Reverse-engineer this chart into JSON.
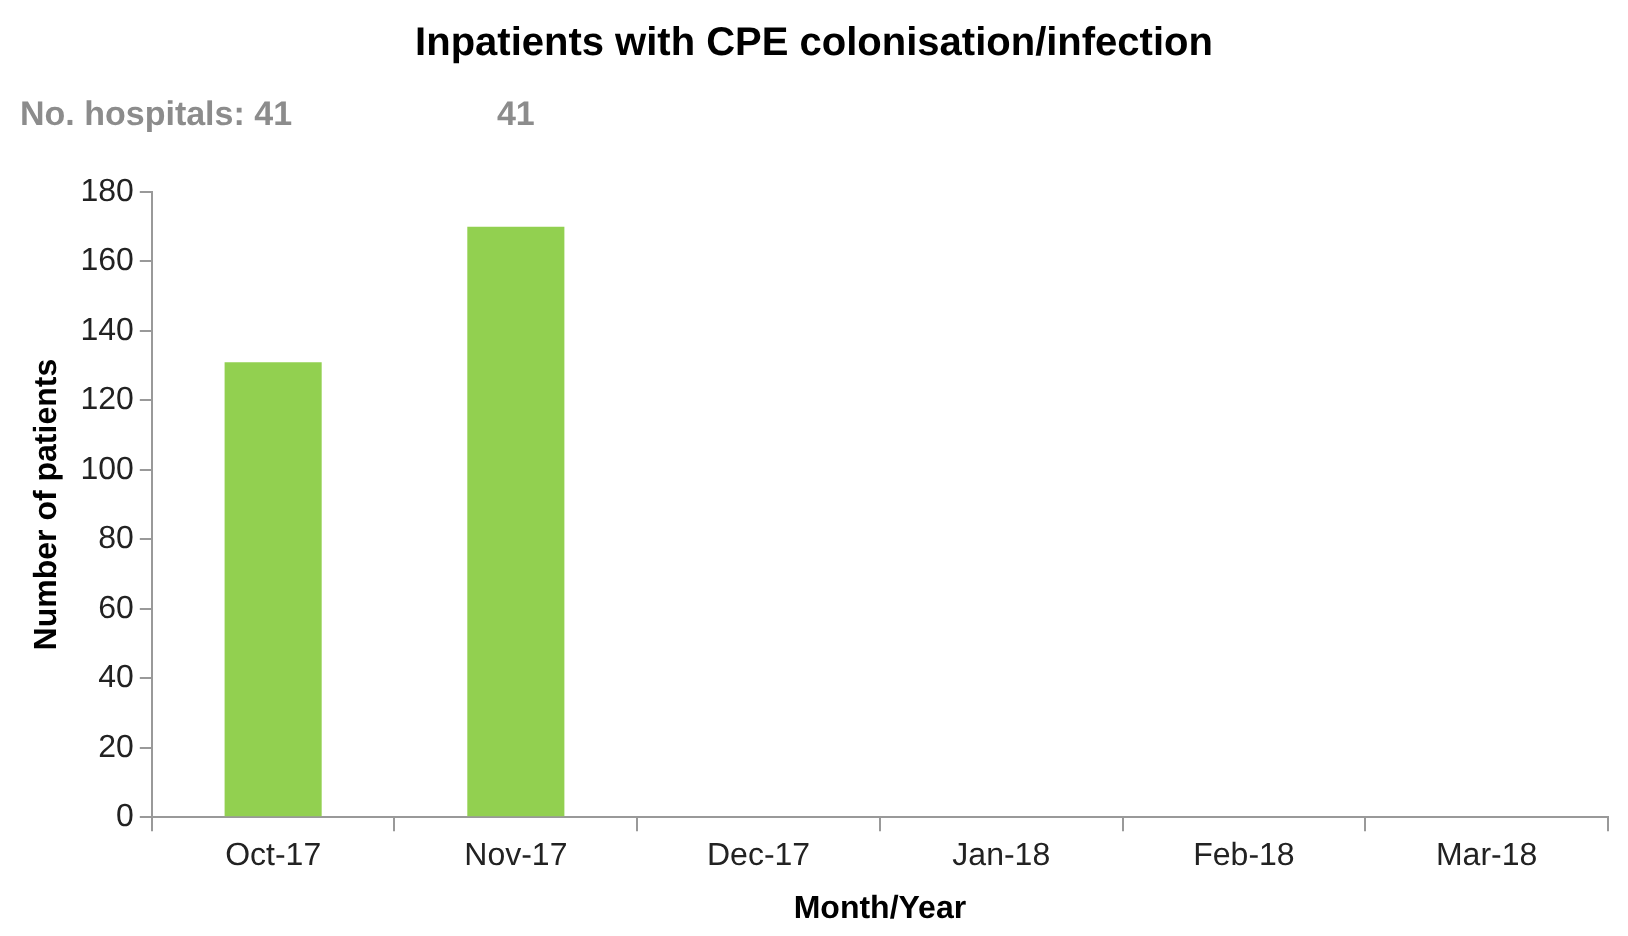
{
  "chart_data": {
    "type": "bar",
    "title": "Inpatients with CPE colonisation/infection",
    "xlabel": "Month/Year",
    "ylabel": "Number of patients",
    "categories": [
      "Oct-17",
      "Nov-17",
      "Dec-17",
      "Jan-18",
      "Feb-18",
      "Mar-18"
    ],
    "values": [
      131,
      170,
      null,
      null,
      null,
      null
    ],
    "color": "#92d050",
    "ylim": [
      0,
      180
    ],
    "yticks": [
      0,
      20,
      40,
      60,
      80,
      100,
      120,
      140,
      160,
      180
    ],
    "annotations": [
      "No. hospitals:",
      "41",
      "41"
    ]
  }
}
